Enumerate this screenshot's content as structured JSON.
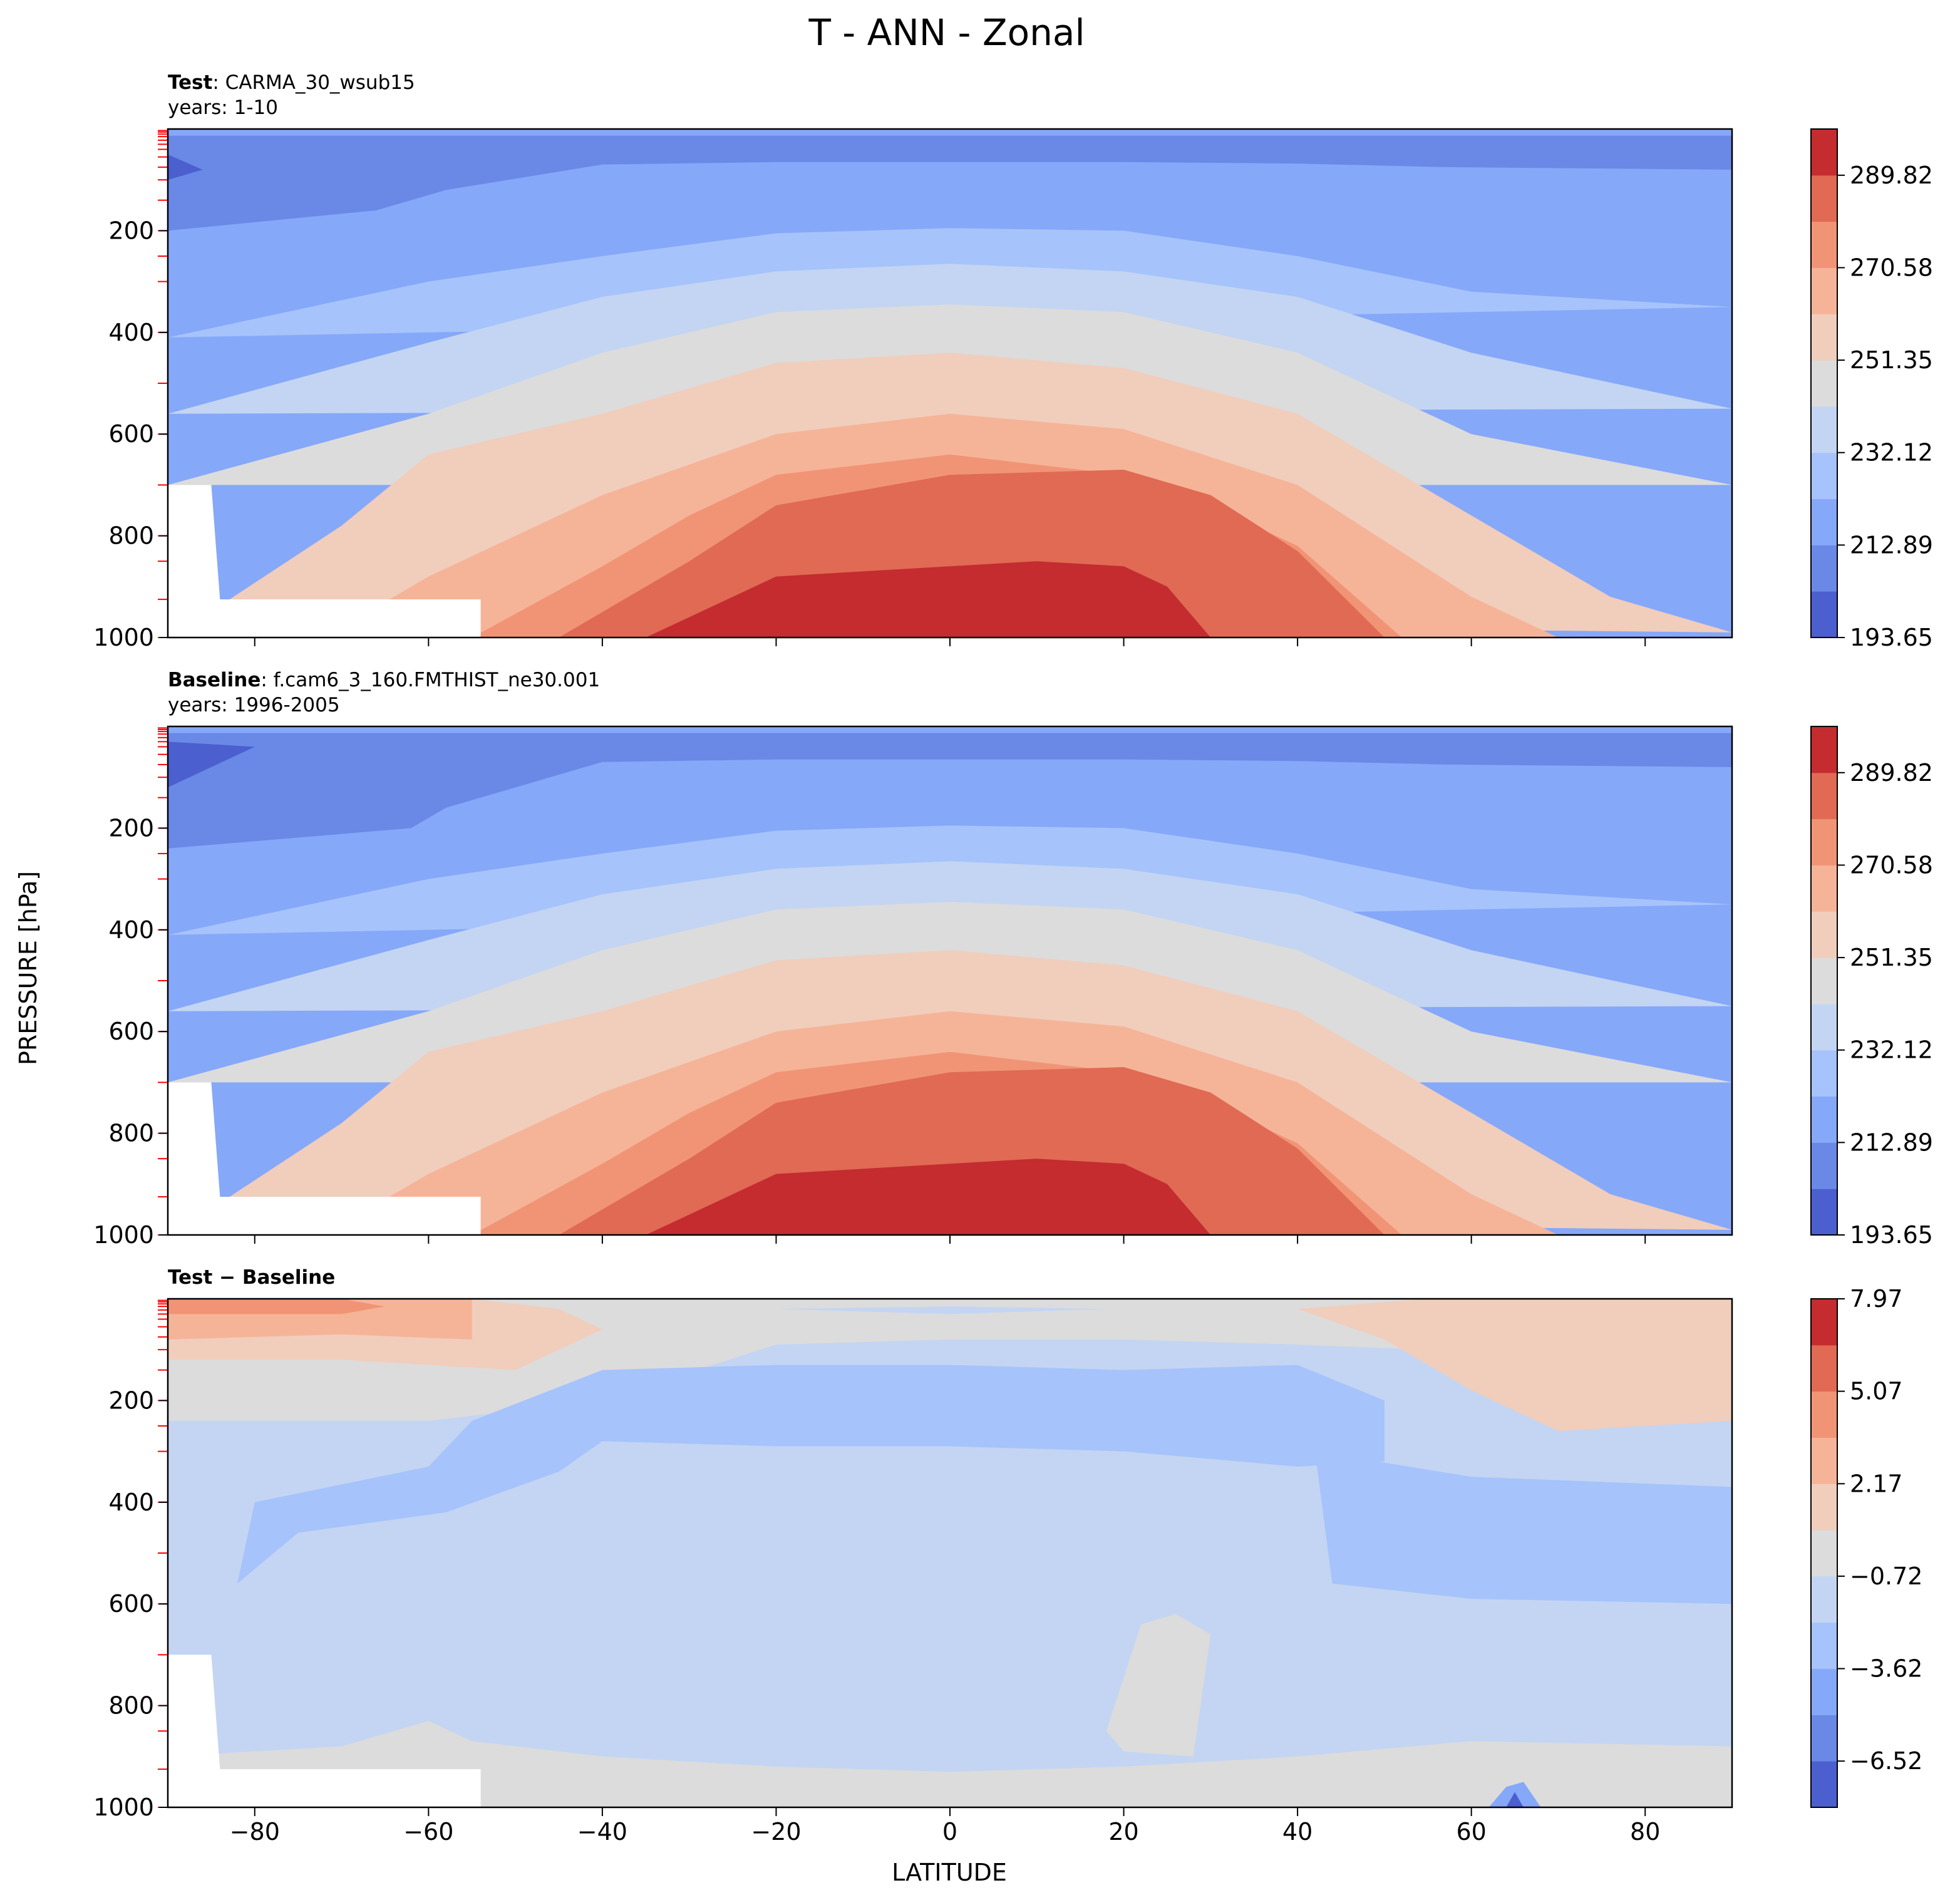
{
  "chart_data": {
    "type": "contour",
    "title": "T - ANN - Zonal",
    "xlabel": "LATITUDE",
    "ylabel": "PRESSURE [hPa]",
    "xlim": [
      -90,
      90
    ],
    "ylim": [
      1000,
      0
    ],
    "x_ticks": [
      -80,
      -60,
      -40,
      -20,
      0,
      20,
      40,
      60,
      80
    ],
    "x_tick_labels": [
      "−80",
      "−60",
      "−40",
      "−20",
      "0",
      "20",
      "40",
      "60",
      "80"
    ],
    "y_ticks": [
      200,
      400,
      600,
      800,
      1000
    ],
    "y_tick_labels": [
      "200",
      "400",
      "600",
      "800",
      "1000"
    ],
    "model_levels_hPa": [
      3,
      6,
      10,
      15,
      22,
      30,
      40,
      55,
      75,
      100,
      140,
      200,
      250,
      300,
      400,
      500,
      600,
      700,
      800,
      850,
      925,
      1000
    ],
    "panels": [
      {
        "id": "test",
        "label_bold": "Test",
        "label": ": CARMA_30_wsub15",
        "subtitle": "years: 1-10",
        "colormap": "coolwarm",
        "colorbar_ticks": [
          "289.82",
          "270.58",
          "251.35",
          "232.12",
          "212.89",
          "193.65"
        ],
        "levels": [
          193.65,
          203.27,
          212.89,
          222.5,
          232.12,
          241.73,
          251.35,
          260.97,
          270.58,
          280.2,
          289.82,
          299.43
        ],
        "contours": [
          {
            "level": 2,
            "lat": [
              -90,
              -30,
              0,
              30,
              90,
              90,
              -90
            ],
            "p": [
              13,
              13,
              13,
              13,
              13,
              11,
              11
            ]
          },
          {
            "level": 1,
            "lat": [
              -90,
              -66,
              -58,
              -40,
              -20,
              0,
              20,
              40,
              57,
              90,
              90,
              -90
            ],
            "p": [
              200,
              160,
              120,
              70,
              65,
              65,
              65,
              68,
              75,
              80,
              13,
              13
            ]
          },
          {
            "level": 0,
            "lat": [
              -90,
              -86,
              -90
            ],
            "p": [
              50,
              80,
              100
            ]
          },
          {
            "level": 3,
            "lat": [
              -90,
              -60,
              -40,
              -20,
              0,
              20,
              40,
              60,
              90
            ],
            "p": [
              410,
              300,
              250,
              205,
              195,
              200,
              250,
              320,
              350
            ]
          },
          {
            "level": 4,
            "lat": [
              -90,
              -60,
              -40,
              -20,
              0,
              20,
              40,
              60,
              90
            ],
            "p": [
              560,
              420,
              330,
              280,
              265,
              280,
              330,
              440,
              550
            ]
          },
          {
            "level": 5,
            "lat": [
              -90,
              -60,
              -40,
              -20,
              0,
              20,
              40,
              60,
              90
            ],
            "p": [
              700,
              560,
              440,
              360,
              345,
              360,
              440,
              600,
              700
            ]
          },
          {
            "level": 6,
            "lat": [
              -86,
              -70,
              -60,
              -40,
              -20,
              0,
              20,
              40,
              60,
              76,
              90
            ],
            "p": [
              960,
              780,
              640,
              560,
              460,
              440,
              470,
              560,
              760,
              920,
              990
            ]
          },
          {
            "level": 7,
            "lat": [
              -72,
              -60,
              -40,
              -20,
              0,
              20,
              40,
              60,
              70
            ],
            "p": [
              1000,
              880,
              720,
              600,
              560,
              590,
              700,
              920,
              1000
            ]
          },
          {
            "level": 8,
            "lat": [
              -55,
              -40,
              -30,
              -20,
              0,
              20,
              30,
              40,
              52
            ],
            "p": [
              1000,
              860,
              760,
              680,
              640,
              680,
              740,
              820,
              1000
            ]
          },
          {
            "level": 9,
            "lat": [
              -45,
              -30,
              -20,
              0,
              20,
              30,
              40,
              50
            ],
            "p": [
              1000,
              850,
              740,
              680,
              670,
              720,
              830,
              1000
            ]
          },
          {
            "level": 10,
            "lat": [
              -35,
              -20,
              -10,
              0,
              10,
              20,
              25,
              30
            ],
            "p": [
              1000,
              880,
              870,
              860,
              850,
              860,
              900,
              1000
            ]
          }
        ]
      },
      {
        "id": "baseline",
        "label_bold": "Baseline",
        "label": ": f.cam6_3_160.FMTHIST_ne30.001",
        "subtitle": "years: 1996-2005",
        "colormap": "coolwarm",
        "colorbar_ticks": [
          "289.82",
          "270.58",
          "251.35",
          "232.12",
          "212.89",
          "193.65"
        ],
        "levels": [
          193.65,
          203.27,
          212.89,
          222.5,
          232.12,
          241.73,
          251.35,
          260.97,
          270.58,
          280.2,
          289.82,
          299.43
        ],
        "contours": [
          {
            "level": 2,
            "lat": [
              -90,
              -30,
              0,
              30,
              90,
              90,
              -90
            ],
            "p": [
              13,
              13,
              13,
              13,
              13,
              11,
              11
            ]
          },
          {
            "level": 1,
            "lat": [
              -90,
              -62,
              -58,
              -40,
              -20,
              0,
              20,
              40,
              57,
              90,
              90,
              -90
            ],
            "p": [
              240,
              200,
              160,
              70,
              65,
              65,
              65,
              68,
              75,
              80,
              13,
              13
            ]
          },
          {
            "level": 0,
            "lat": [
              -90,
              -80,
              -90
            ],
            "p": [
              30,
              40,
              120
            ]
          },
          {
            "level": 3,
            "lat": [
              -90,
              -60,
              -40,
              -20,
              0,
              20,
              40,
              60,
              90
            ],
            "p": [
              410,
              300,
              250,
              205,
              195,
              200,
              250,
              320,
              350
            ]
          },
          {
            "level": 4,
            "lat": [
              -90,
              -60,
              -40,
              -20,
              0,
              20,
              40,
              60,
              90
            ],
            "p": [
              560,
              420,
              330,
              280,
              265,
              280,
              330,
              440,
              550
            ]
          },
          {
            "level": 5,
            "lat": [
              -90,
              -60,
              -40,
              -20,
              0,
              20,
              40,
              60,
              90
            ],
            "p": [
              700,
              560,
              440,
              360,
              345,
              360,
              440,
              600,
              700
            ]
          },
          {
            "level": 6,
            "lat": [
              -86,
              -70,
              -60,
              -40,
              -20,
              0,
              20,
              40,
              60,
              76,
              90
            ],
            "p": [
              960,
              780,
              640,
              560,
              460,
              440,
              470,
              560,
              760,
              920,
              990
            ]
          },
          {
            "level": 7,
            "lat": [
              -72,
              -60,
              -40,
              -20,
              0,
              20,
              40,
              60,
              70
            ],
            "p": [
              1000,
              880,
              720,
              600,
              560,
              590,
              700,
              920,
              1000
            ]
          },
          {
            "level": 8,
            "lat": [
              -55,
              -40,
              -30,
              -20,
              0,
              20,
              30,
              40,
              52
            ],
            "p": [
              1000,
              860,
              760,
              680,
              640,
              680,
              740,
              820,
              1000
            ]
          },
          {
            "level": 9,
            "lat": [
              -45,
              -30,
              -20,
              0,
              20,
              30,
              40,
              50
            ],
            "p": [
              1000,
              850,
              740,
              680,
              670,
              720,
              830,
              1000
            ]
          },
          {
            "level": 10,
            "lat": [
              -35,
              -20,
              -10,
              0,
              10,
              20,
              25,
              30
            ],
            "p": [
              1000,
              880,
              870,
              860,
              850,
              860,
              900,
              1000
            ]
          }
        ]
      },
      {
        "id": "diff",
        "label_bold": "Test − Baseline",
        "label": "",
        "subtitle": "",
        "colormap": "coolwarm",
        "colorbar_ticks": [
          "7.97",
          "5.07",
          "2.17",
          "−0.72",
          "−3.62",
          "−6.52"
        ],
        "levels": [
          -7.97,
          -6.52,
          -5.07,
          -3.62,
          -2.17,
          -0.72,
          0.72,
          2.17,
          3.62,
          5.07,
          6.52,
          7.97
        ],
        "contours": [
          {
            "level": 4,
            "lat": [
              -90,
              90,
              90,
              -90
            ],
            "p": [
              0,
              0,
              1000,
              1000
            ]
          },
          {
            "level": 5,
            "lat": [
              -90,
              -70,
              -60,
              -55,
              -40,
              -20,
              0,
              20,
              40,
              60,
              90,
              90,
              60,
              40,
              20,
              0,
              -20,
              -40,
              -60,
              -70,
              -90
            ],
            "p": [
              900,
              880,
              830,
              870,
              900,
              920,
              930,
              920,
              900,
              870,
              880,
              1000,
              1000,
              1000,
              1000,
              1000,
              1000,
              1000,
              1000,
              1000,
              1000
            ]
          },
          {
            "level": 5,
            "lat": [
              18,
              22,
              26,
              30,
              28,
              20,
              18
            ],
            "p": [
              850,
              640,
              620,
              660,
              900,
              890,
              850
            ]
          },
          {
            "level": 5,
            "lat": [
              -90,
              -60,
              -40,
              -20,
              0,
              20,
              40,
              55,
              60,
              90,
              90,
              -90
            ],
            "p": [
              240,
              240,
              200,
              90,
              80,
              80,
              90,
              100,
              130,
              150,
              0,
              0
            ]
          },
          {
            "level": 3,
            "lat": [
              -40,
              -20,
              0,
              20,
              40,
              50,
              50,
              40,
              20,
              0,
              -20,
              -40,
              -45,
              -58,
              -75,
              -82,
              -80,
              -60,
              -55,
              -40
            ],
            "p": [
              140,
              130,
              130,
              140,
              130,
              200,
              320,
              330,
              300,
              290,
              290,
              280,
              340,
              420,
              460,
              560,
              400,
              330,
              240,
              140
            ]
          },
          {
            "level": 3,
            "lat": [
              42,
              60,
              90,
              90,
              60,
              44,
              42
            ],
            "p": [
              300,
              350,
              370,
              600,
              590,
              560,
              300
            ]
          },
          {
            "level": 6,
            "lat": [
              -90,
              -70,
              -55,
              -45,
              -40,
              -50,
              -70,
              -90
            ],
            "p": [
              0,
              0,
              0,
              20,
              60,
              140,
              120,
              120
            ]
          },
          {
            "level": 6,
            "lat": [
              40,
              55,
              60,
              90,
              90,
              70,
              60,
              50,
              40
            ],
            "p": [
              20,
              0,
              0,
              0,
              240,
              260,
              180,
              80,
              20
            ]
          },
          {
            "level": 7,
            "lat": [
              -90,
              -70,
              -55,
              -55,
              -70,
              -90
            ],
            "p": [
              0,
              0,
              0,
              80,
              70,
              80
            ]
          },
          {
            "level": 8,
            "lat": [
              -90,
              -70,
              -65,
              -70,
              -90
            ],
            "p": [
              0,
              0,
              15,
              30,
              30
            ]
          },
          {
            "level": 4,
            "lat": [
              -20,
              0,
              18,
              0,
              -20
            ],
            "p": [
              20,
              15,
              20,
              30,
              20
            ]
          },
          {
            "level": 2,
            "lat": [
              62,
              64,
              66,
              68,
              65,
              62
            ],
            "p": [
              1000,
              960,
              950,
              1000,
              1000,
              1000
            ]
          },
          {
            "level": 0,
            "lat": [
              64,
              65,
              66,
              65,
              64
            ],
            "p": [
              1000,
              970,
              1000,
              1000,
              1000
            ]
          }
        ]
      }
    ],
    "masked_topography": [
      {
        "lat": -90,
        "p": 700
      },
      {
        "lat": -85,
        "p": 700
      },
      {
        "lat": -84,
        "p": 925
      },
      {
        "lat": -54,
        "p": 925
      },
      {
        "lat": -54,
        "p": 1000
      },
      {
        "lat": -90,
        "p": 1000
      }
    ],
    "lat_grid": [
      -90,
      90
    ],
    "colors": {
      "coolwarm": [
        "#4b5fcf",
        "#6a89e6",
        "#86a8f9",
        "#a6c3fb",
        "#c3d5f2",
        "#dcdcdc",
        "#f1cdbc",
        "#f5b498",
        "#f19476",
        "#e06a53",
        "#c42c30"
      ]
    }
  }
}
